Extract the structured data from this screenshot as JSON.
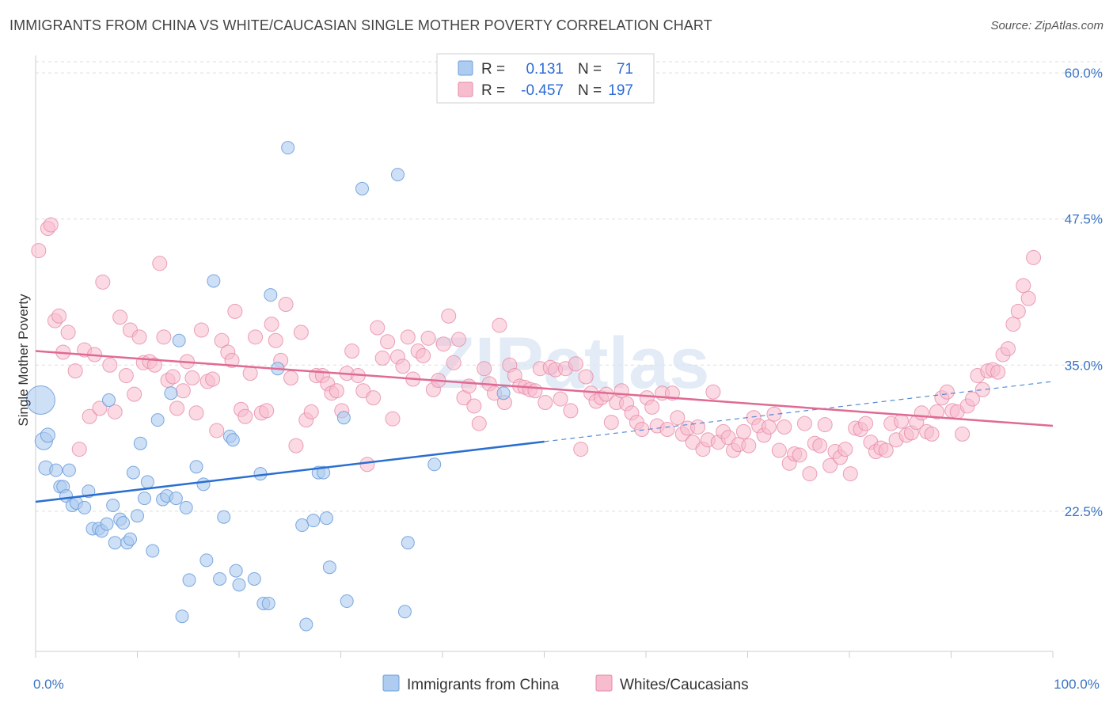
{
  "title": "IMMIGRANTS FROM CHINA VS WHITE/CAUCASIAN SINGLE MOTHER POVERTY CORRELATION CHART",
  "source": "Source: ZipAtlas.com",
  "watermark": "ZIPatlas",
  "colors": {
    "blue_fill": "#aecbf0",
    "blue_stroke": "#6f9fdc",
    "blue_line": "#2a6fd0",
    "pink_fill": "#f7bccd",
    "pink_stroke": "#e68aa6",
    "pink_line": "#e06a93",
    "tick_text": "#3a74c4",
    "grid": "#dddddd"
  },
  "legend_top": {
    "rows": [
      {
        "r_label": "R =",
        "r_value": "0.131",
        "n_label": "N =",
        "n_value": "71"
      },
      {
        "r_label": "R =",
        "r_value": "-0.457",
        "n_label": "N =",
        "n_value": "197"
      }
    ]
  },
  "legend_bottom": [
    {
      "label": "Immigrants from China"
    },
    {
      "label": "Whites/Caucasians"
    }
  ],
  "chart_data": {
    "type": "scatter",
    "title": "IMMIGRANTS FROM CHINA VS WHITE/CAUCASIAN SINGLE MOTHER POVERTY CORRELATION CHART",
    "xlabel": "",
    "ylabel": "Single Mother Poverty",
    "xlim": [
      0,
      100
    ],
    "ylim": [
      10.5,
      61.5
    ],
    "x_tick_labels": [
      {
        "value": 0,
        "label": "0.0%"
      },
      {
        "value": 100,
        "label": "100.0%"
      }
    ],
    "y_tick_labels": [
      {
        "value": 22.5,
        "label": "22.5%"
      },
      {
        "value": 35.0,
        "label": "35.0%"
      },
      {
        "value": 47.5,
        "label": "47.5%"
      },
      {
        "value": 60.0,
        "label": "60.0%"
      }
    ],
    "grid": "horizontal dashed",
    "legend_placement": "top-center",
    "series": [
      {
        "name": "Immigrants from China",
        "R": 0.131,
        "N": 71,
        "trend": {
          "x0": 0,
          "y0": 23.3,
          "x1": 100,
          "y1": 33.6,
          "solid_until_x": 50
        },
        "points": [
          [
            0.5,
            32.0,
            18
          ],
          [
            0.8,
            28.5,
            11
          ],
          [
            1.2,
            29.0,
            9
          ],
          [
            1.0,
            26.2,
            9
          ],
          [
            2.0,
            26.0,
            8
          ],
          [
            3.3,
            26.0,
            8
          ],
          [
            2.4,
            24.6,
            8
          ],
          [
            2.7,
            24.6,
            8
          ],
          [
            3.0,
            23.8,
            8
          ],
          [
            3.6,
            23.0,
            8
          ],
          [
            4.0,
            23.2,
            8
          ],
          [
            4.8,
            22.8,
            8
          ],
          [
            5.2,
            24.2,
            8
          ],
          [
            7.2,
            32.0,
            8
          ],
          [
            7.6,
            23.0,
            8
          ],
          [
            5.6,
            21.0,
            8
          ],
          [
            6.2,
            21.0,
            8
          ],
          [
            6.5,
            20.8,
            8
          ],
          [
            7.0,
            21.4,
            8
          ],
          [
            7.8,
            19.8,
            8
          ],
          [
            8.3,
            21.8,
            8
          ],
          [
            8.6,
            21.5,
            8
          ],
          [
            9.0,
            19.8,
            8
          ],
          [
            9.3,
            20.1,
            8
          ],
          [
            9.6,
            25.8,
            8
          ],
          [
            10.0,
            22.1,
            8
          ],
          [
            10.3,
            28.3,
            8
          ],
          [
            10.7,
            23.6,
            8
          ],
          [
            11.0,
            25.0,
            8
          ],
          [
            11.5,
            19.1,
            8
          ],
          [
            12.0,
            30.3,
            8
          ],
          [
            12.5,
            23.5,
            8
          ],
          [
            12.9,
            23.8,
            8
          ],
          [
            13.3,
            32.6,
            8
          ],
          [
            13.8,
            23.6,
            8
          ],
          [
            14.1,
            37.1,
            8
          ],
          [
            14.8,
            22.8,
            8
          ],
          [
            14.4,
            13.5,
            8
          ],
          [
            15.1,
            16.6,
            8
          ],
          [
            15.8,
            26.3,
            8
          ],
          [
            16.5,
            24.8,
            8
          ],
          [
            16.8,
            18.3,
            8
          ],
          [
            17.5,
            42.2,
            8
          ],
          [
            18.1,
            16.7,
            8
          ],
          [
            18.5,
            22.0,
            8
          ],
          [
            19.1,
            28.9,
            8
          ],
          [
            19.4,
            28.6,
            8
          ],
          [
            19.7,
            17.4,
            8
          ],
          [
            20.0,
            16.2,
            8
          ],
          [
            21.5,
            16.7,
            8
          ],
          [
            22.1,
            25.7,
            8
          ],
          [
            22.4,
            14.6,
            8
          ],
          [
            22.9,
            14.6,
            8
          ],
          [
            23.1,
            41.0,
            8
          ],
          [
            23.8,
            34.7,
            8
          ],
          [
            24.8,
            53.6,
            8
          ],
          [
            26.2,
            21.3,
            8
          ],
          [
            26.6,
            12.8,
            8
          ],
          [
            27.3,
            21.7,
            8
          ],
          [
            27.8,
            25.8,
            8
          ],
          [
            28.3,
            25.8,
            8
          ],
          [
            28.6,
            21.9,
            8
          ],
          [
            28.9,
            17.7,
            8
          ],
          [
            30.3,
            30.5,
            8
          ],
          [
            30.6,
            14.8,
            8
          ],
          [
            32.1,
            50.1,
            8
          ],
          [
            35.6,
            51.3,
            8
          ],
          [
            36.3,
            13.9,
            8
          ],
          [
            36.6,
            19.8,
            8
          ],
          [
            39.2,
            26.5,
            8
          ],
          [
            46.0,
            32.6,
            8
          ]
        ]
      },
      {
        "name": "Whites/Caucasians",
        "R": -0.457,
        "N": 197,
        "trend": {
          "x0": 0,
          "y0": 36.2,
          "x1": 100,
          "y1": 29.8
        },
        "points": [
          [
            0.3,
            44.8
          ],
          [
            1.2,
            46.7
          ],
          [
            1.5,
            47.0
          ],
          [
            1.9,
            38.8
          ],
          [
            2.3,
            39.2
          ],
          [
            2.7,
            36.1
          ],
          [
            3.2,
            37.8
          ],
          [
            3.9,
            34.5
          ],
          [
            4.3,
            27.8
          ],
          [
            4.8,
            36.3
          ],
          [
            5.3,
            30.6
          ],
          [
            5.8,
            35.9
          ],
          [
            6.3,
            31.3
          ],
          [
            6.6,
            42.1
          ],
          [
            7.3,
            35.0
          ],
          [
            7.8,
            31.0
          ],
          [
            8.3,
            39.1
          ],
          [
            8.9,
            34.1
          ],
          [
            9.3,
            38.0
          ],
          [
            9.7,
            32.5
          ],
          [
            10.2,
            37.4
          ],
          [
            10.6,
            35.2
          ],
          [
            11.2,
            35.3
          ],
          [
            11.7,
            35.0
          ],
          [
            12.2,
            43.7
          ],
          [
            12.6,
            37.4
          ],
          [
            13.0,
            33.7
          ],
          [
            13.5,
            34.0
          ],
          [
            13.9,
            31.3
          ],
          [
            14.5,
            32.8
          ],
          [
            14.9,
            35.3
          ],
          [
            15.4,
            33.9
          ],
          [
            15.8,
            30.9
          ],
          [
            16.3,
            38.0
          ],
          [
            16.9,
            33.6
          ],
          [
            17.4,
            33.8
          ],
          [
            17.8,
            29.4
          ],
          [
            18.3,
            37.1
          ],
          [
            18.9,
            36.1
          ],
          [
            19.3,
            35.4
          ],
          [
            19.6,
            39.6
          ],
          [
            20.2,
            31.2
          ],
          [
            20.6,
            30.6
          ],
          [
            21.1,
            34.3
          ],
          [
            21.6,
            37.4
          ],
          [
            22.2,
            30.9
          ],
          [
            22.7,
            31.1
          ],
          [
            23.2,
            38.5
          ],
          [
            23.6,
            37.1
          ],
          [
            24.1,
            35.4
          ],
          [
            24.6,
            40.2
          ],
          [
            25.1,
            33.9
          ],
          [
            25.6,
            28.1
          ],
          [
            26.1,
            37.8
          ],
          [
            26.6,
            30.3
          ],
          [
            27.1,
            31.0
          ],
          [
            27.6,
            34.1
          ],
          [
            28.2,
            34.1
          ],
          [
            28.7,
            33.4
          ],
          [
            29.1,
            32.6
          ],
          [
            29.6,
            32.8
          ],
          [
            30.1,
            31.1
          ],
          [
            30.6,
            34.3
          ],
          [
            31.1,
            36.2
          ],
          [
            31.7,
            34.1
          ],
          [
            32.2,
            32.8
          ],
          [
            32.6,
            26.5
          ],
          [
            33.2,
            32.2
          ],
          [
            33.6,
            38.2
          ],
          [
            34.1,
            35.6
          ],
          [
            34.6,
            37.0
          ],
          [
            35.1,
            30.4
          ],
          [
            35.6,
            35.7
          ],
          [
            36.1,
            34.9
          ],
          [
            36.6,
            37.4
          ],
          [
            37.1,
            33.8
          ],
          [
            37.6,
            36.2
          ],
          [
            38.1,
            35.8
          ],
          [
            38.6,
            37.3
          ],
          [
            39.1,
            32.9
          ],
          [
            39.6,
            33.7
          ],
          [
            40.1,
            36.8
          ],
          [
            40.6,
            39.2
          ],
          [
            41.1,
            35.2
          ],
          [
            41.6,
            37.2
          ],
          [
            42.1,
            32.2
          ],
          [
            42.6,
            33.2
          ],
          [
            43.1,
            31.5
          ],
          [
            43.6,
            30.0
          ],
          [
            44.1,
            34.7
          ],
          [
            44.6,
            33.4
          ],
          [
            45.1,
            32.6
          ],
          [
            45.6,
            38.4
          ],
          [
            46.1,
            31.8
          ],
          [
            46.6,
            35.0
          ],
          [
            47.1,
            34.1
          ],
          [
            47.6,
            33.2
          ],
          [
            48.1,
            33.1
          ],
          [
            48.6,
            32.9
          ],
          [
            49.1,
            32.8
          ],
          [
            49.6,
            34.7
          ],
          [
            50.1,
            31.8
          ],
          [
            50.6,
            34.8
          ],
          [
            51.1,
            34.6
          ],
          [
            51.6,
            32.1
          ],
          [
            52.1,
            34.7
          ],
          [
            52.6,
            31.1
          ],
          [
            53.1,
            35.1
          ],
          [
            53.6,
            27.8
          ],
          [
            54.1,
            34.0
          ],
          [
            54.6,
            32.6
          ],
          [
            55.1,
            31.9
          ],
          [
            55.6,
            32.2
          ],
          [
            56.1,
            32.5
          ],
          [
            56.6,
            30.1
          ],
          [
            57.1,
            31.8
          ],
          [
            57.6,
            32.8
          ],
          [
            58.1,
            31.7
          ],
          [
            58.6,
            30.9
          ],
          [
            59.1,
            30.1
          ],
          [
            59.6,
            29.5
          ],
          [
            60.1,
            32.2
          ],
          [
            60.6,
            31.4
          ],
          [
            61.1,
            29.8
          ],
          [
            61.6,
            32.6
          ],
          [
            62.1,
            29.5
          ],
          [
            62.6,
            32.6
          ],
          [
            63.1,
            30.5
          ],
          [
            63.6,
            29.1
          ],
          [
            64.1,
            29.6
          ],
          [
            64.6,
            28.4
          ],
          [
            65.1,
            29.7
          ],
          [
            65.6,
            27.8
          ],
          [
            66.1,
            28.6
          ],
          [
            66.6,
            32.7
          ],
          [
            67.1,
            28.4
          ],
          [
            67.6,
            29.3
          ],
          [
            68.1,
            28.8
          ],
          [
            68.6,
            27.7
          ],
          [
            69.1,
            28.2
          ],
          [
            69.6,
            29.3
          ],
          [
            70.1,
            28.1
          ],
          [
            70.6,
            30.5
          ],
          [
            71.1,
            29.8
          ],
          [
            71.6,
            29.0
          ],
          [
            72.1,
            29.7
          ],
          [
            72.6,
            30.8
          ],
          [
            73.1,
            27.7
          ],
          [
            73.6,
            29.7
          ],
          [
            74.1,
            26.6
          ],
          [
            74.6,
            27.4
          ],
          [
            75.1,
            27.3
          ],
          [
            75.6,
            30.0
          ],
          [
            76.1,
            25.7
          ],
          [
            76.6,
            28.3
          ],
          [
            77.1,
            28.1
          ],
          [
            77.6,
            29.9
          ],
          [
            78.1,
            26.4
          ],
          [
            78.6,
            27.6
          ],
          [
            79.1,
            27.1
          ],
          [
            79.6,
            27.8
          ],
          [
            80.1,
            25.7
          ],
          [
            80.6,
            29.6
          ],
          [
            81.1,
            29.5
          ],
          [
            81.6,
            30.0
          ],
          [
            82.1,
            28.4
          ],
          [
            82.6,
            27.6
          ],
          [
            83.1,
            27.9
          ],
          [
            83.6,
            27.7
          ],
          [
            84.1,
            30.0
          ],
          [
            84.6,
            28.6
          ],
          [
            85.1,
            30.2
          ],
          [
            85.6,
            29.0
          ],
          [
            86.1,
            29.2
          ],
          [
            86.6,
            30.1
          ],
          [
            87.1,
            30.9
          ],
          [
            87.6,
            29.3
          ],
          [
            88.1,
            29.1
          ],
          [
            88.6,
            31.0
          ],
          [
            89.1,
            32.2
          ],
          [
            89.6,
            32.7
          ],
          [
            90.1,
            31.1
          ],
          [
            90.6,
            31.0
          ],
          [
            91.1,
            29.1
          ],
          [
            91.6,
            31.5
          ],
          [
            92.1,
            32.1
          ],
          [
            92.6,
            34.1
          ],
          [
            93.1,
            32.9
          ],
          [
            93.6,
            34.5
          ],
          [
            94.1,
            34.6
          ],
          [
            94.6,
            34.4
          ],
          [
            95.1,
            35.9
          ],
          [
            95.6,
            36.4
          ],
          [
            96.1,
            38.5
          ],
          [
            96.6,
            39.6
          ],
          [
            97.1,
            41.8
          ],
          [
            97.6,
            40.7
          ],
          [
            98.1,
            44.2
          ]
        ]
      }
    ]
  }
}
